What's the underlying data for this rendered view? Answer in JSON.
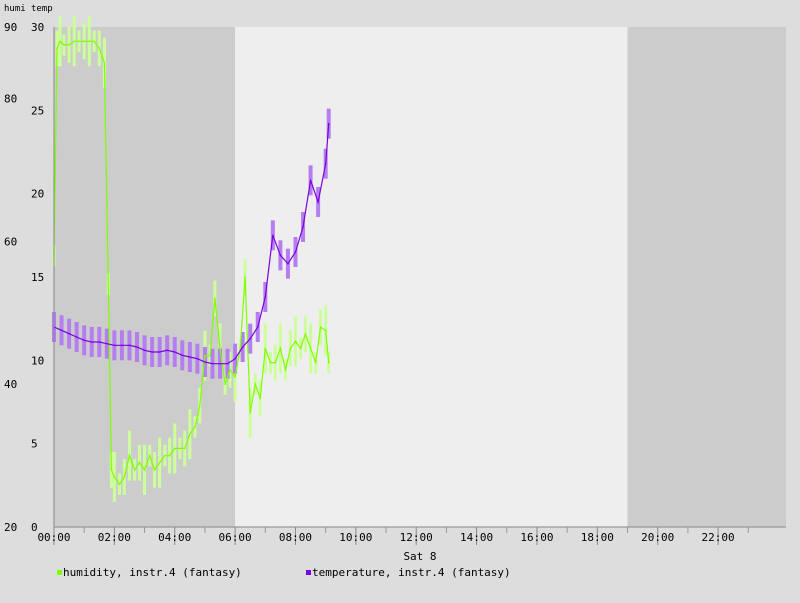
{
  "chart_data": {
    "type": "line",
    "header_labels": [
      "humi",
      "temp"
    ],
    "xlabel": "Sat 8",
    "x_ticks": [
      "00:00",
      "02:00",
      "04:00",
      "06:00",
      "08:00",
      "10:00",
      "12:00",
      "14:00",
      "16:00",
      "18:00",
      "20:00",
      "22:00"
    ],
    "x_range_hours": [
      0,
      24.25
    ],
    "day_period_hours": [
      6,
      19
    ],
    "humidity_axis": {
      "ticks": [
        20,
        40,
        60,
        80,
        90
      ],
      "range": [
        20,
        90
      ]
    },
    "temperature_axis": {
      "ticks": [
        0,
        5,
        10,
        15,
        20,
        25,
        30
      ],
      "range": [
        0,
        30
      ]
    },
    "grid": false,
    "series": [
      {
        "name": "humidity, instr.4 (fantasy)",
        "axis": "humidity",
        "color": "#7fff00",
        "band_color": "#ccff99",
        "x": [
          0.0,
          0.1,
          0.2,
          0.33,
          0.5,
          0.67,
          0.83,
          1.0,
          1.17,
          1.33,
          1.5,
          1.67,
          1.8,
          1.9,
          2.0,
          2.17,
          2.33,
          2.5,
          2.67,
          2.83,
          3.0,
          3.17,
          3.33,
          3.5,
          3.67,
          3.83,
          4.0,
          4.17,
          4.33,
          4.5,
          4.67,
          4.83,
          5.0,
          5.17,
          5.33,
          5.5,
          5.67,
          5.83,
          6.0,
          6.17,
          6.33,
          6.5,
          6.67,
          6.83,
          7.0,
          7.17,
          7.33,
          7.5,
          7.67,
          7.83,
          8.0,
          8.17,
          8.33,
          8.5,
          8.67,
          8.83,
          9.0,
          9.1
        ],
        "values": [
          58,
          87,
          88,
          87.5,
          87.5,
          88,
          88,
          88,
          88,
          88,
          87,
          85,
          54,
          28,
          27,
          26,
          27,
          30,
          28,
          29,
          28,
          30,
          28,
          29,
          30,
          30,
          31,
          31,
          31,
          33,
          34,
          37,
          44,
          44,
          52,
          45,
          40,
          42,
          41,
          45,
          55,
          36,
          40,
          38,
          45,
          43,
          43,
          45,
          42,
          45,
          46,
          45,
          47,
          45,
          43,
          48,
          47.5,
          43
        ]
      },
      {
        "name": "temperature, instr.4 (fantasy)",
        "axis": "temperature",
        "color": "#7b00e0",
        "band_color": "#b57ef0",
        "x": [
          0.0,
          0.25,
          0.5,
          0.75,
          1.0,
          1.25,
          1.5,
          1.75,
          2.0,
          2.25,
          2.5,
          2.75,
          3.0,
          3.25,
          3.5,
          3.75,
          4.0,
          4.25,
          4.5,
          4.75,
          5.0,
          5.25,
          5.5,
          5.75,
          6.0,
          6.25,
          6.5,
          6.75,
          7.0,
          7.25,
          7.5,
          7.75,
          8.0,
          8.25,
          8.5,
          8.75,
          9.0,
          9.1
        ],
        "values": [
          12.0,
          11.8,
          11.6,
          11.4,
          11.2,
          11.1,
          11.1,
          11.0,
          10.9,
          10.9,
          10.9,
          10.8,
          10.6,
          10.5,
          10.5,
          10.6,
          10.5,
          10.3,
          10.2,
          10.1,
          9.9,
          9.8,
          9.8,
          9.8,
          10.1,
          10.8,
          11.3,
          12.0,
          13.8,
          17.5,
          16.3,
          15.8,
          16.5,
          18.0,
          20.8,
          19.5,
          21.8,
          24.2
        ]
      }
    ]
  }
}
